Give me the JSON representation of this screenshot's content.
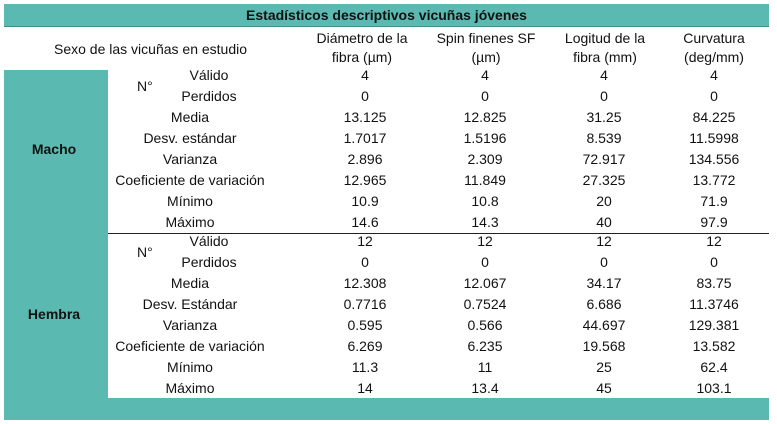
{
  "title": "Estadísticos descriptivos vicuñas jóvenes",
  "header": {
    "group": "Sexo de las vicuñas en estudio",
    "columns": [
      {
        "line1": "Diámetro de la",
        "line2": "fibra (µm)"
      },
      {
        "line1": "Spin finenes SF",
        "line2": "(µm)"
      },
      {
        "line1": "Logitud de la",
        "line2": "fibra (mm)"
      },
      {
        "line1": "Curvatura",
        "line2": "(deg/mm)"
      }
    ]
  },
  "n_label": "N°",
  "groups": [
    {
      "name": "Macho",
      "rows": [
        {
          "label": "Válido",
          "values": [
            "4",
            "4",
            "4",
            "4"
          ]
        },
        {
          "label": "Perdidos",
          "values": [
            "0",
            "0",
            "0",
            "0"
          ]
        },
        {
          "label": "Media",
          "values": [
            "13.125",
            "12.825",
            "31.25",
            "84.225"
          ]
        },
        {
          "label": "Desv. estándar",
          "values": [
            "1.7017",
            "1.5196",
            "8.539",
            "11.5998"
          ]
        },
        {
          "label": "Varianza",
          "values": [
            "2.896",
            "2.309",
            "72.917",
            "134.556"
          ]
        },
        {
          "label": "Coeficiente de variación",
          "values": [
            "12.965",
            "11.849",
            "27.325",
            "13.772"
          ]
        },
        {
          "label": "Mínimo",
          "values": [
            "10.9",
            "10.8",
            "20",
            "71.9"
          ]
        },
        {
          "label": "Máximo",
          "values": [
            "14.6",
            "14.3",
            "40",
            "97.9"
          ]
        }
      ]
    },
    {
      "name": "Hembra",
      "rows": [
        {
          "label": "Válido",
          "values": [
            "12",
            "12",
            "12",
            "12"
          ]
        },
        {
          "label": "Perdidos",
          "values": [
            "0",
            "0",
            "0",
            "0"
          ]
        },
        {
          "label": "Media",
          "values": [
            "12.308",
            "12.067",
            "34.17",
            "83.75"
          ]
        },
        {
          "label": "Desv. Estándar",
          "values": [
            "0.7716",
            "0.7524",
            "6.686",
            "11.3746"
          ]
        },
        {
          "label": "Varianza",
          "values": [
            "0.595",
            "0.566",
            "44.697",
            "129.381"
          ]
        },
        {
          "label": "Coeficiente de variación",
          "values": [
            "6.269",
            "6.235",
            "19.568",
            "13.582"
          ]
        },
        {
          "label": "Mínimo",
          "values": [
            "11.3",
            "11",
            "25",
            "62.4"
          ]
        },
        {
          "label": "Máximo",
          "values": [
            "14",
            "13.4",
            "45",
            "103.1"
          ]
        }
      ]
    }
  ],
  "colors": {
    "teal": "#5ab9b0",
    "white": "#ffffff"
  }
}
